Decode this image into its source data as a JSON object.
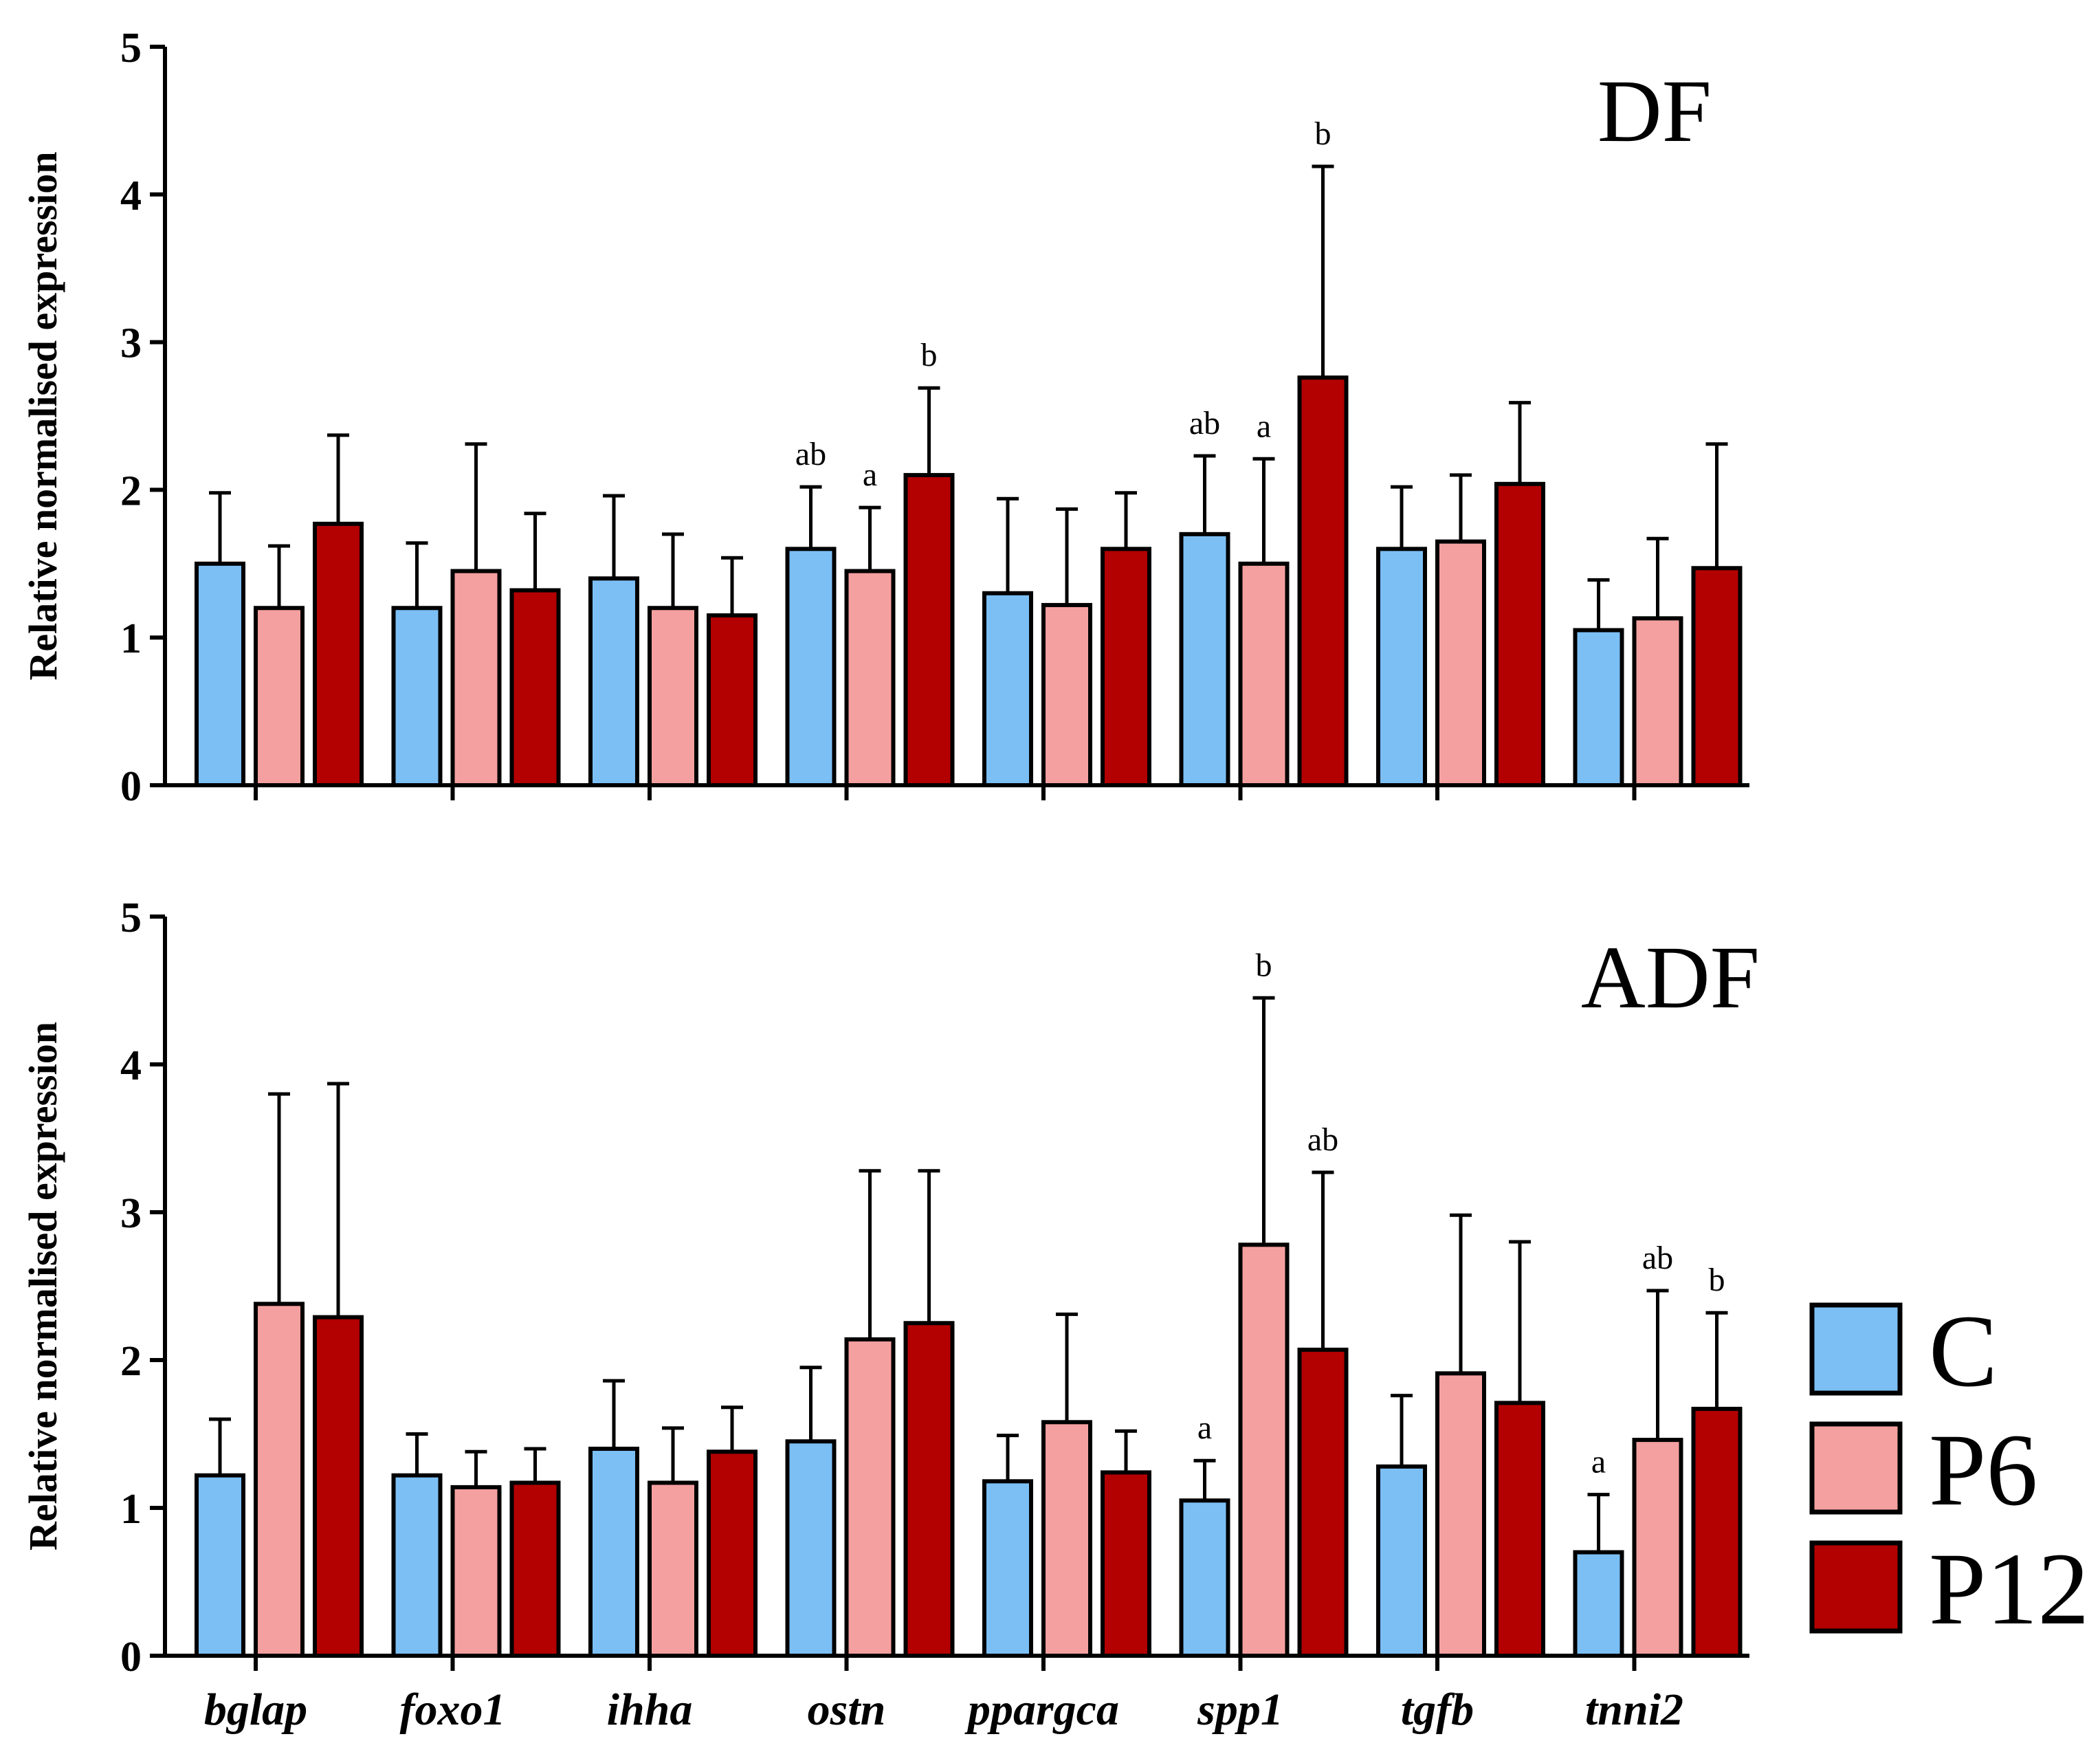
{
  "chart_data": [
    {
      "type": "bar",
      "panel": "DF",
      "ylabel": "Relative normalised expression",
      "ylim": [
        0,
        5
      ],
      "yticks": [
        "0",
        "1",
        "2",
        "3",
        "4",
        "5"
      ],
      "categories": [
        "bglap",
        "foxo1",
        "ihha",
        "ostn",
        "ppargca",
        "spp1",
        "tgfb",
        "tnni2"
      ],
      "series": [
        {
          "name": "C",
          "color": "#7CBFF5",
          "values": [
            1.5,
            1.2,
            1.4,
            1.6,
            1.3,
            1.7,
            1.6,
            1.05
          ],
          "errors": [
            0.48,
            0.44,
            0.56,
            0.42,
            0.64,
            0.53,
            0.42,
            0.34
          ]
        },
        {
          "name": "P6",
          "color": "#F5A0A0",
          "values": [
            1.2,
            1.45,
            1.2,
            1.45,
            1.22,
            1.5,
            1.65,
            1.13
          ],
          "errors": [
            0.42,
            0.86,
            0.5,
            0.43,
            0.65,
            0.71,
            0.45,
            0.54
          ]
        },
        {
          "name": "P12",
          "color": "#B30000",
          "values": [
            1.77,
            1.32,
            1.15,
            2.1,
            1.6,
            2.76,
            2.04,
            1.47
          ],
          "errors": [
            0.6,
            0.52,
            0.39,
            0.59,
            0.38,
            1.43,
            0.55,
            0.84
          ]
        }
      ],
      "significance": [
        {
          "category": "ostn",
          "series": "C",
          "label": "ab"
        },
        {
          "category": "ostn",
          "series": "P6",
          "label": "a"
        },
        {
          "category": "ostn",
          "series": "P12",
          "label": "b"
        },
        {
          "category": "spp1",
          "series": "C",
          "label": "ab"
        },
        {
          "category": "spp1",
          "series": "P6",
          "label": "a"
        },
        {
          "category": "spp1",
          "series": "P12",
          "label": "b"
        }
      ]
    },
    {
      "type": "bar",
      "panel": "ADF",
      "ylabel": "Relative normalised expression",
      "ylim": [
        0,
        5
      ],
      "yticks": [
        "0",
        "1",
        "2",
        "3",
        "4",
        "5"
      ],
      "categories": [
        "bglap",
        "foxo1",
        "ihha",
        "ostn",
        "ppargca",
        "spp1",
        "tgfb",
        "tnni2"
      ],
      "series": [
        {
          "name": "C",
          "color": "#7CBFF5",
          "values": [
            1.22,
            1.22,
            1.4,
            1.45,
            1.18,
            1.05,
            1.28,
            0.7
          ],
          "errors": [
            0.38,
            0.28,
            0.46,
            0.5,
            0.31,
            0.27,
            0.48,
            0.39
          ]
        },
        {
          "name": "P6",
          "color": "#F5A0A0",
          "values": [
            2.38,
            1.14,
            1.17,
            2.14,
            1.58,
            2.78,
            1.91,
            1.46
          ],
          "errors": [
            1.42,
            0.24,
            0.37,
            1.14,
            0.73,
            1.67,
            1.07,
            1.01
          ]
        },
        {
          "name": "P12",
          "color": "#B30000",
          "values": [
            2.29,
            1.17,
            1.38,
            2.25,
            1.24,
            2.07,
            1.71,
            1.67
          ],
          "errors": [
            1.58,
            0.23,
            0.3,
            1.03,
            0.28,
            1.2,
            1.09,
            0.65
          ]
        }
      ],
      "significance": [
        {
          "category": "spp1",
          "series": "C",
          "label": "a"
        },
        {
          "category": "spp1",
          "series": "P6",
          "label": "b"
        },
        {
          "category": "spp1",
          "series": "P12",
          "label": "ab"
        },
        {
          "category": "tnni2",
          "series": "C",
          "label": "a"
        },
        {
          "category": "tnni2",
          "series": "P6",
          "label": "ab"
        },
        {
          "category": "tnni2",
          "series": "P12",
          "label": "b"
        }
      ]
    }
  ],
  "legend": [
    {
      "label": "C",
      "color": "#7CBFF5"
    },
    {
      "label": "P6",
      "color": "#F5A0A0"
    },
    {
      "label": "P12",
      "color": "#B30000"
    }
  ]
}
